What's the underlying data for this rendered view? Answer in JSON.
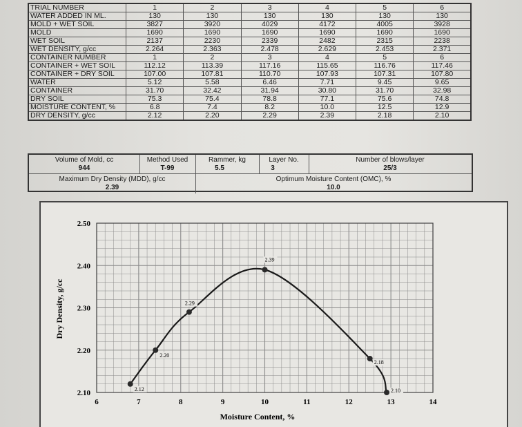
{
  "trial_table": {
    "rows": [
      {
        "label": "TRIAL NUMBER",
        "values": [
          "1",
          "2",
          "3",
          "4",
          "5",
          "6"
        ]
      },
      {
        "label": "WATER ADDED IN ML.",
        "values": [
          "130",
          "130",
          "130",
          "130",
          "130",
          "130"
        ]
      },
      {
        "label": "MOLD + WET SOIL",
        "values": [
          "3827",
          "3920",
          "4029",
          "4172",
          "4005",
          "3928"
        ]
      },
      {
        "label": "MOLD",
        "values": [
          "1690",
          "1690",
          "1690",
          "1690",
          "1690",
          "1690"
        ]
      },
      {
        "label": "WET SOIL",
        "values": [
          "2137",
          "2230",
          "2339",
          "2482",
          "2315",
          "2238"
        ]
      },
      {
        "label": "WET DENSITY, g/cc",
        "values": [
          "2.264",
          "2.363",
          "2.478",
          "2.629",
          "2.453",
          "2.371"
        ]
      },
      {
        "label": "CONTAINER NUMBER",
        "values": [
          "1",
          "2",
          "3",
          "4",
          "5",
          "6"
        ]
      },
      {
        "label": "CONTAINER + WET SOIL",
        "values": [
          "112.12",
          "113.39",
          "117.16",
          "115.65",
          "116.76",
          "117.46"
        ]
      },
      {
        "label": "CONTAINER + DRY SOIL",
        "values": [
          "107.00",
          "107.81",
          "110.70",
          "107.93",
          "107.31",
          "107.80"
        ]
      },
      {
        "label": "WATER",
        "values": [
          "5.12",
          "5.58",
          "6.46",
          "7.71",
          "9.45",
          "9.65"
        ]
      },
      {
        "label": "CONTAINER",
        "values": [
          "31.70",
          "32.42",
          "31.94",
          "30.80",
          "31.70",
          "32.98"
        ]
      },
      {
        "label": "DRY SOIL",
        "values": [
          "75.3",
          "75.4",
          "78.8",
          "77.1",
          "75.6",
          "74.8"
        ]
      },
      {
        "label": "MOISTURE CONTENT, %",
        "values": [
          "6.8",
          "7.4",
          "8.2",
          "10.0",
          "12.5",
          "12.9"
        ]
      },
      {
        "label": "DRY DENSITY, g/cc",
        "values": [
          "2.12",
          "2.20",
          "2.29",
          "2.39",
          "2.18",
          "2.10"
        ]
      }
    ]
  },
  "summary": {
    "volume_label": "Volume of Mold, cc",
    "volume_value": "944",
    "method_label": "Method Used",
    "method_value": "T-99",
    "rammer_label": "Rammer, kg",
    "rammer_value": "5.5",
    "layer_label": "Layer No.",
    "layer_value": "3",
    "blows_label": "Number of blows/layer",
    "blows_value": "25/3",
    "mdd_label": "Maximum Dry Density (MDD), g/cc",
    "mdd_value": "2.39",
    "omc_label": "Optimum Moisture Content (OMC), %",
    "omc_value": "10.0"
  },
  "chart_data": {
    "type": "line",
    "xlabel": "Moisture Content, %",
    "ylabel": "Dry Density, g/cc",
    "xlim": [
      6,
      14
    ],
    "ylim": [
      2.1,
      2.5
    ],
    "x_ticks": [
      "6",
      "7",
      "8",
      "9",
      "10",
      "11",
      "12",
      "13",
      "14"
    ],
    "y_ticks": [
      "2.10",
      "2.20",
      "2.30",
      "2.40",
      "2.50"
    ],
    "grid": true,
    "series": [
      {
        "x": [
          6.8,
          7.4,
          8.2,
          10.0,
          12.5,
          12.9
        ],
        "y": [
          2.12,
          2.2,
          2.29,
          2.39,
          2.18,
          2.1
        ],
        "labels": [
          "2.12",
          "2.20",
          "2.29",
          "2.39",
          "2.18",
          "2.10"
        ]
      }
    ]
  }
}
